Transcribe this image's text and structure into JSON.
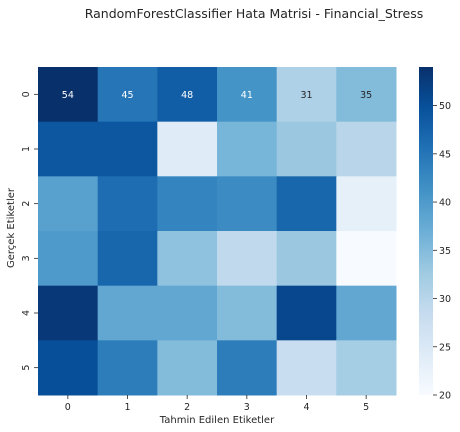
{
  "chart_data": {
    "type": "heatmap",
    "title": "RandomForestClassifier Hata Matrisi - Financial_Stress",
    "xlabel": "Tahmin Edilen Etiketler",
    "ylabel": "Gerçek Etiketler",
    "x_categories": [
      "0",
      "1",
      "2",
      "3",
      "4",
      "5"
    ],
    "y_categories": [
      "0",
      "1",
      "2",
      "3",
      "4",
      "5"
    ],
    "values": [
      [
        54,
        45,
        48,
        41,
        31,
        35
      ],
      [
        49,
        49,
        24,
        36,
        33,
        30
      ],
      [
        39,
        46,
        43,
        42,
        47,
        23
      ],
      [
        40,
        47,
        34,
        29,
        33,
        20
      ],
      [
        53,
        38,
        38,
        35,
        51,
        38
      ],
      [
        50,
        44,
        35,
        44,
        28,
        32
      ]
    ],
    "annotated_row": 0,
    "colorbar": {
      "min": 20,
      "max": 54,
      "ticks": [
        20,
        25,
        30,
        35,
        40,
        45,
        50
      ],
      "colormap": "Blues"
    },
    "grid": false
  }
}
